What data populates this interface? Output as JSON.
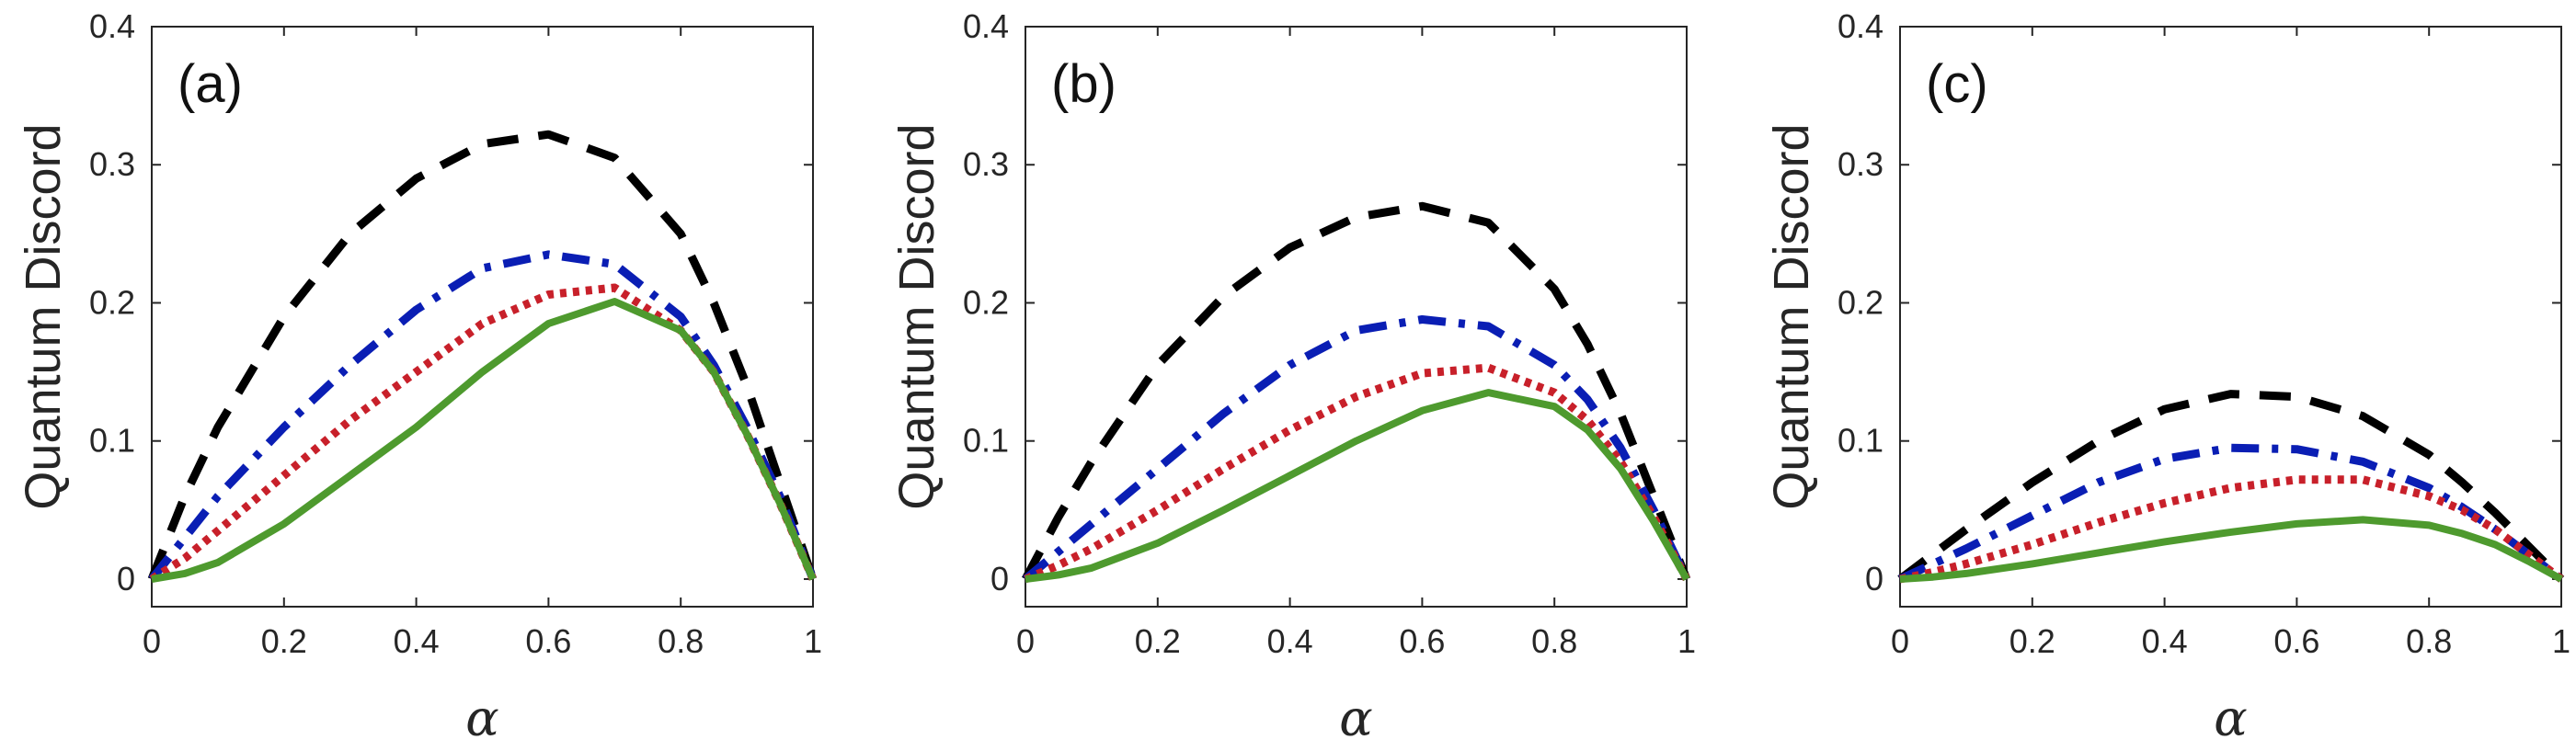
{
  "chart_data": [
    {
      "type": "line",
      "panel_label": "(a)",
      "xlabel": "α",
      "ylabel": "Quantum Discord",
      "xlim": [
        0,
        1
      ],
      "ylim": [
        -0.02,
        0.4
      ],
      "xticks": [
        0,
        0.2,
        0.4,
        0.6,
        0.8,
        1
      ],
      "xtick_labels": [
        "0",
        "0.2",
        "0.4",
        "0.6",
        "0.8",
        "1"
      ],
      "yticks": [
        0,
        0.1,
        0.2,
        0.3,
        0.4
      ],
      "ytick_labels": [
        "0",
        "0.1",
        "0.2",
        "0.3",
        "0.4"
      ],
      "series": [
        {
          "name": "black-dashed",
          "color": "#000000",
          "style": "dashed",
          "x": [
            0,
            0.05,
            0.1,
            0.2,
            0.3,
            0.4,
            0.5,
            0.6,
            0.7,
            0.8,
            0.85,
            0.9,
            0.95,
            1
          ],
          "y": [
            0,
            0.06,
            0.11,
            0.19,
            0.25,
            0.29,
            0.315,
            0.322,
            0.305,
            0.25,
            0.2,
            0.14,
            0.07,
            0
          ]
        },
        {
          "name": "blue-dashdot",
          "color": "#0a1eb4",
          "style": "dashdot",
          "x": [
            0,
            0.05,
            0.1,
            0.2,
            0.3,
            0.4,
            0.5,
            0.6,
            0.7,
            0.8,
            0.85,
            0.9,
            0.95,
            1
          ],
          "y": [
            0,
            0.03,
            0.06,
            0.11,
            0.155,
            0.195,
            0.225,
            0.235,
            0.228,
            0.19,
            0.155,
            0.11,
            0.06,
            0
          ]
        },
        {
          "name": "red-dotted",
          "color": "#c8202a",
          "style": "dotted",
          "x": [
            0,
            0.05,
            0.1,
            0.2,
            0.3,
            0.4,
            0.5,
            0.6,
            0.7,
            0.8,
            0.85,
            0.9,
            0.95,
            1
          ],
          "y": [
            0,
            0.015,
            0.035,
            0.075,
            0.115,
            0.15,
            0.185,
            0.206,
            0.211,
            0.18,
            0.15,
            0.105,
            0.055,
            0
          ]
        },
        {
          "name": "green-solid",
          "color": "#4e9a2e",
          "style": "solid",
          "x": [
            0,
            0.05,
            0.1,
            0.2,
            0.3,
            0.4,
            0.5,
            0.6,
            0.7,
            0.8,
            0.85,
            0.9,
            0.95,
            1
          ],
          "y": [
            0,
            0.004,
            0.012,
            0.04,
            0.075,
            0.11,
            0.15,
            0.185,
            0.201,
            0.18,
            0.15,
            0.105,
            0.055,
            0
          ]
        }
      ]
    },
    {
      "type": "line",
      "panel_label": "(b)",
      "xlabel": "α",
      "ylabel": "Quantum Discord",
      "xlim": [
        0,
        1
      ],
      "ylim": [
        -0.02,
        0.4
      ],
      "xticks": [
        0,
        0.2,
        0.4,
        0.6,
        0.8,
        1
      ],
      "xtick_labels": [
        "0",
        "0.2",
        "0.4",
        "0.6",
        "0.8",
        "1"
      ],
      "yticks": [
        0,
        0.1,
        0.2,
        0.3,
        0.4
      ],
      "ytick_labels": [
        "0",
        "0.1",
        "0.2",
        "0.3",
        "0.4"
      ],
      "series": [
        {
          "name": "black-dashed",
          "color": "#000000",
          "style": "dashed",
          "x": [
            0,
            0.05,
            0.1,
            0.2,
            0.3,
            0.4,
            0.5,
            0.6,
            0.7,
            0.8,
            0.85,
            0.9,
            0.95,
            1
          ],
          "y": [
            0,
            0.045,
            0.085,
            0.155,
            0.205,
            0.24,
            0.262,
            0.27,
            0.258,
            0.21,
            0.17,
            0.12,
            0.06,
            0
          ]
        },
        {
          "name": "blue-dashdot",
          "color": "#0a1eb4",
          "style": "dashdot",
          "x": [
            0,
            0.05,
            0.1,
            0.2,
            0.3,
            0.4,
            0.5,
            0.6,
            0.7,
            0.8,
            0.85,
            0.9,
            0.95,
            1
          ],
          "y": [
            0,
            0.02,
            0.04,
            0.08,
            0.12,
            0.155,
            0.18,
            0.188,
            0.183,
            0.155,
            0.13,
            0.095,
            0.05,
            0
          ]
        },
        {
          "name": "red-dotted",
          "color": "#c8202a",
          "style": "dotted",
          "x": [
            0,
            0.05,
            0.1,
            0.2,
            0.3,
            0.4,
            0.5,
            0.6,
            0.7,
            0.8,
            0.85,
            0.9,
            0.95,
            1
          ],
          "y": [
            0,
            0.01,
            0.022,
            0.05,
            0.08,
            0.108,
            0.132,
            0.149,
            0.153,
            0.135,
            0.115,
            0.085,
            0.045,
            0
          ]
        },
        {
          "name": "green-solid",
          "color": "#4e9a2e",
          "style": "solid",
          "x": [
            0,
            0.05,
            0.1,
            0.2,
            0.3,
            0.4,
            0.5,
            0.6,
            0.7,
            0.8,
            0.85,
            0.9,
            0.95,
            1
          ],
          "y": [
            0,
            0.003,
            0.008,
            0.026,
            0.05,
            0.075,
            0.1,
            0.122,
            0.135,
            0.125,
            0.108,
            0.08,
            0.042,
            0
          ]
        }
      ]
    },
    {
      "type": "line",
      "panel_label": "(c)",
      "xlabel": "α",
      "ylabel": "Quantum Discord",
      "xlim": [
        0,
        1
      ],
      "ylim": [
        -0.02,
        0.4
      ],
      "xticks": [
        0,
        0.2,
        0.4,
        0.6,
        0.8,
        1
      ],
      "xtick_labels": [
        "0",
        "0.2",
        "0.4",
        "0.6",
        "0.8",
        "1"
      ],
      "yticks": [
        0,
        0.1,
        0.2,
        0.3,
        0.4
      ],
      "ytick_labels": [
        "0",
        "0.1",
        "0.2",
        "0.3",
        "0.4"
      ],
      "series": [
        {
          "name": "black-dashed",
          "color": "#000000",
          "style": "dashed",
          "x": [
            0,
            0.05,
            0.1,
            0.2,
            0.3,
            0.4,
            0.5,
            0.6,
            0.7,
            0.8,
            0.85,
            0.9,
            0.95,
            1
          ],
          "y": [
            0,
            0.018,
            0.036,
            0.07,
            0.1,
            0.123,
            0.134,
            0.132,
            0.118,
            0.09,
            0.07,
            0.048,
            0.024,
            0
          ]
        },
        {
          "name": "blue-dashdot",
          "color": "#0a1eb4",
          "style": "dashdot",
          "x": [
            0,
            0.05,
            0.1,
            0.2,
            0.3,
            0.4,
            0.5,
            0.6,
            0.7,
            0.8,
            0.85,
            0.9,
            0.95,
            1
          ],
          "y": [
            0,
            0.011,
            0.022,
            0.046,
            0.07,
            0.087,
            0.095,
            0.094,
            0.085,
            0.066,
            0.052,
            0.036,
            0.018,
            0
          ]
        },
        {
          "name": "red-dotted",
          "color": "#c8202a",
          "style": "dotted",
          "x": [
            0,
            0.05,
            0.1,
            0.2,
            0.3,
            0.4,
            0.5,
            0.6,
            0.7,
            0.8,
            0.85,
            0.9,
            0.95,
            1
          ],
          "y": [
            0,
            0.005,
            0.011,
            0.025,
            0.041,
            0.055,
            0.066,
            0.072,
            0.072,
            0.06,
            0.05,
            0.036,
            0.018,
            0
          ]
        },
        {
          "name": "green-solid",
          "color": "#4e9a2e",
          "style": "solid",
          "x": [
            0,
            0.05,
            0.1,
            0.2,
            0.3,
            0.4,
            0.5,
            0.6,
            0.7,
            0.8,
            0.85,
            0.9,
            0.95,
            1
          ],
          "y": [
            0,
            0.0015,
            0.004,
            0.011,
            0.019,
            0.027,
            0.034,
            0.04,
            0.043,
            0.039,
            0.033,
            0.025,
            0.013,
            0
          ]
        }
      ]
    }
  ]
}
